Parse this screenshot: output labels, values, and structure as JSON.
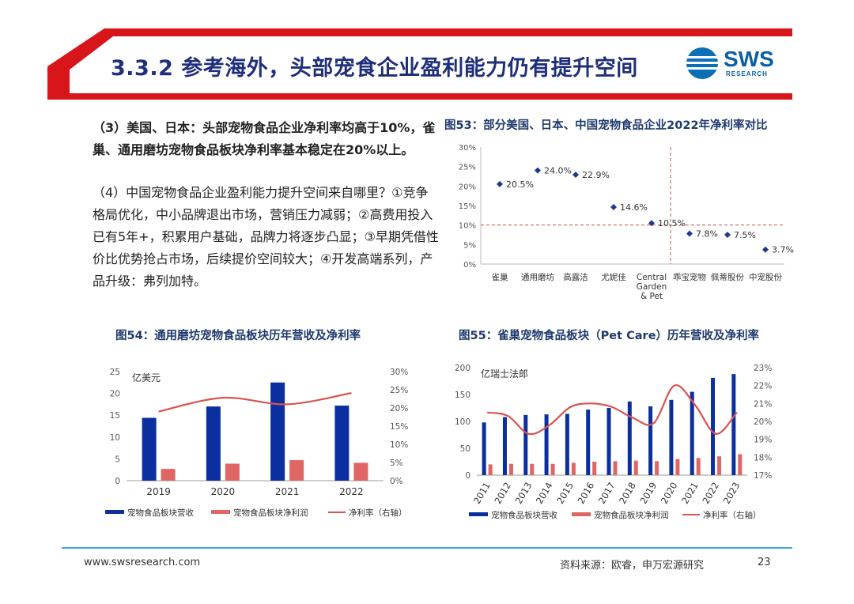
{
  "header": {
    "title": "3.3.2 参考海外，头部宠食企业盈利能力仍有提升空间",
    "logo_text": "SWS",
    "logo_sub": "RESEARCH"
  },
  "body": {
    "para1": "（3）美国、日本：头部宠物食品企业净利率均高于10%，雀巢、通用磨坊宠物食品板块净利率基本稳定在20%以上。",
    "para2": "（4）中国宠物食品企业盈利能力提升空间来自哪里？①竞争格局优化，中小品牌退出市场，营销压力减弱；②高费用投入已有5年+，积累用户基础，品牌力将逐步凸显；③早期凭借性价比优势抢占市场，后续提价空间较大；④开发高端系列，产品升级：弗列加特。"
  },
  "figures": {
    "fig53_title": "图53：部分美国、日本、中国宠物食品企业2022年净利率对比",
    "fig54_title": "图54：通用磨坊宠物食品板块历年营收及净利率",
    "fig55_title": "图55：雀巢宠物食品板块（Pet Care）历年营收及净利率"
  },
  "chart_data": [
    {
      "id": "fig53",
      "type": "scatter",
      "categories": [
        "雀巢",
        "通用磨坊",
        "高露洁",
        "尤妮佳",
        "Central Garden & Pet",
        "乖宝宠物",
        "佩蒂股份",
        "中宠股份"
      ],
      "category_lines": [
        [
          "雀巢"
        ],
        [
          "通用磨坊"
        ],
        [
          "高露洁"
        ],
        [
          "尤妮佳"
        ],
        [
          "Central",
          "Garden",
          "& Pet"
        ],
        [
          "乖宝宠物"
        ],
        [
          "佩蒂股份"
        ],
        [
          "中宠股份"
        ]
      ],
      "values": [
        20.5,
        24.0,
        22.9,
        14.6,
        10.5,
        7.8,
        7.5,
        3.7
      ],
      "labels": [
        "20.5%",
        "24.0%",
        "22.9%",
        "14.6%",
        "10.5%",
        "7.8%",
        "7.5%",
        "3.7%"
      ],
      "ylim": [
        0,
        30
      ],
      "yticks": [
        "0%",
        "5%",
        "10%",
        "15%",
        "20%",
        "25%",
        "30%"
      ],
      "reference_line": 10,
      "color": "#1f3a8a",
      "ref_color": "#c0504d"
    },
    {
      "id": "fig54",
      "type": "bar",
      "categories": [
        "2019",
        "2020",
        "2021",
        "2022"
      ],
      "unit_label": "亿美元",
      "series": [
        {
          "name": "宠物食品板块营收",
          "values": [
            14.4,
            17.0,
            22.5,
            17.2
          ],
          "color": "#0b2f9f"
        },
        {
          "name": "宠物食品板块净利润",
          "values": [
            2.7,
            3.9,
            4.7,
            4.1
          ],
          "color": "#e06666"
        },
        {
          "name": "净利率（右轴）",
          "values": [
            19.0,
            22.8,
            21.0,
            24.1
          ],
          "color": "#d9534f",
          "axis": "right"
        }
      ],
      "ylim_left": [
        0,
        25
      ],
      "yticks_left": [
        "0",
        "5",
        "10",
        "15",
        "20",
        "25"
      ],
      "ylim_right": [
        0,
        30
      ],
      "yticks_right": [
        "0%",
        "5%",
        "10%",
        "15%",
        "20%",
        "25%",
        "30%"
      ]
    },
    {
      "id": "fig55",
      "type": "bar",
      "categories": [
        "2011",
        "2012",
        "2013",
        "2014",
        "2015",
        "2016",
        "2017",
        "2018",
        "2019",
        "2020",
        "2021",
        "2022",
        "2023"
      ],
      "unit_label": "亿瑞士法郎",
      "series": [
        {
          "name": "宠物食品板块营收",
          "values": [
            98,
            108,
            112,
            113,
            114,
            122,
            125,
            137,
            128,
            140,
            155,
            181,
            188
          ],
          "color": "#0b2f9f"
        },
        {
          "name": "宠物食品板块净利润",
          "values": [
            20,
            21,
            21,
            21,
            23,
            25,
            26,
            27,
            26,
            30,
            32,
            35,
            39
          ],
          "color": "#e06666"
        },
        {
          "name": "净利率（右轴）",
          "values": [
            20.5,
            20.3,
            19.3,
            19.8,
            20.8,
            21.0,
            20.8,
            20.2,
            19.9,
            22.0,
            20.9,
            19.3,
            20.5
          ],
          "color": "#d9534f",
          "axis": "right"
        }
      ],
      "ylim_left": [
        0,
        200
      ],
      "yticks_left": [
        "0",
        "50",
        "100",
        "150",
        "200"
      ],
      "ylim_right": [
        17,
        23
      ],
      "yticks_right": [
        "17%",
        "18%",
        "19%",
        "20%",
        "21%",
        "22%",
        "23%"
      ]
    }
  ],
  "footer": {
    "url": "www.swsresearch.com",
    "source": "资料来源：欧睿，申万宏源研究",
    "page": "23"
  }
}
